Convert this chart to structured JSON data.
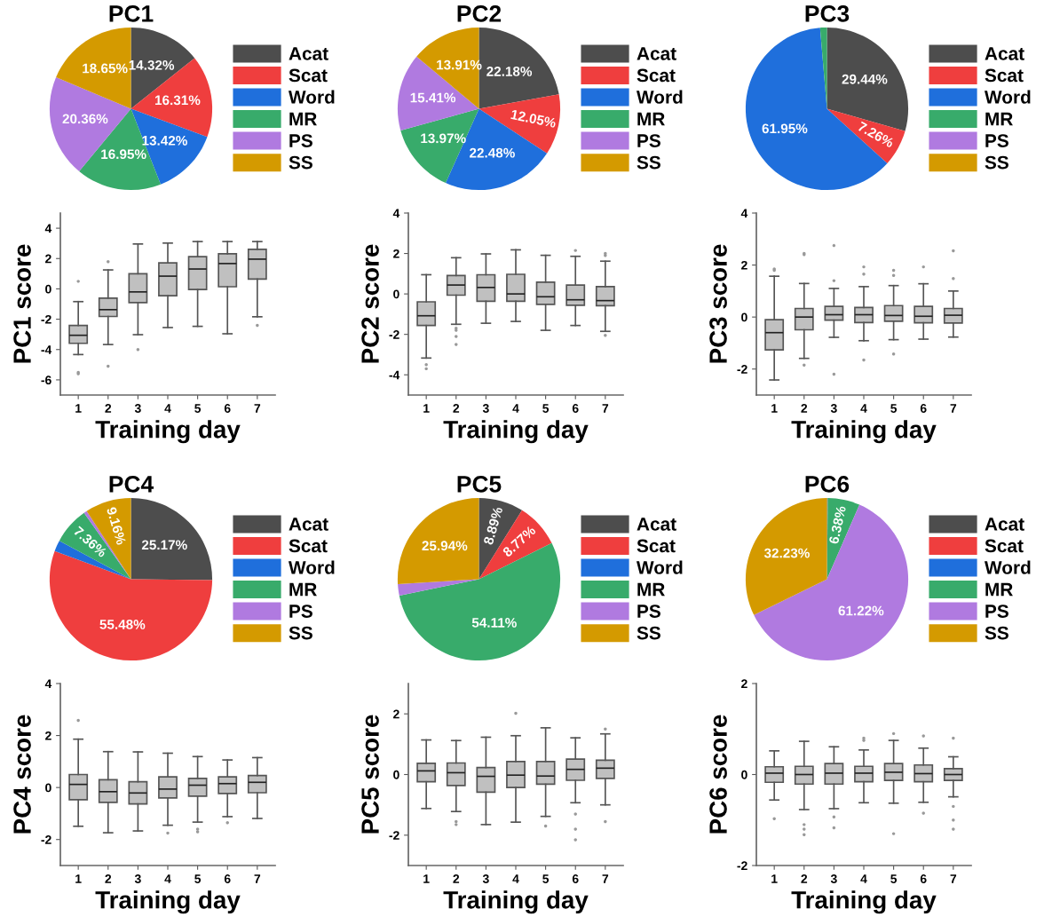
{
  "chart_data": [
    {
      "type": "pie",
      "title": "PC1",
      "legend": "right",
      "categories": [
        "Acat",
        "Scat",
        "Word",
        "MR",
        "PS",
        "SS"
      ],
      "colors": [
        "#4d4d4d",
        "#ef3e3e",
        "#1f6fdc",
        "#38ab6b",
        "#b07ae0",
        "#d49a00"
      ],
      "values": [
        14.32,
        16.31,
        13.42,
        16.95,
        20.36,
        18.65
      ],
      "value_labels": [
        "14.32%",
        "16.31%",
        "13.42%",
        "16.95%",
        "20.36%",
        "18.65%"
      ]
    },
    {
      "type": "pie",
      "title": "PC2",
      "legend": "right",
      "categories": [
        "Acat",
        "Scat",
        "Word",
        "MR",
        "PS",
        "SS"
      ],
      "colors": [
        "#4d4d4d",
        "#ef3e3e",
        "#1f6fdc",
        "#38ab6b",
        "#b07ae0",
        "#d49a00"
      ],
      "values": [
        22.18,
        12.05,
        22.48,
        13.97,
        15.41,
        13.91
      ],
      "value_labels": [
        "22.18%",
        "12.05%",
        "22.48%",
        "13.97%",
        "15.41%",
        "13.91%"
      ]
    },
    {
      "type": "pie",
      "title": "PC3",
      "legend": "right",
      "categories": [
        "Acat",
        "Scat",
        "Word",
        "MR",
        "PS",
        "SS"
      ],
      "colors": [
        "#4d4d4d",
        "#ef3e3e",
        "#1f6fdc",
        "#38ab6b",
        "#b07ae0",
        "#d49a00"
      ],
      "values": [
        29.44,
        7.26,
        61.95,
        1.35,
        0,
        0
      ],
      "value_labels": [
        "29.44%",
        "7.26%",
        "61.95%",
        null,
        null,
        null
      ]
    },
    {
      "type": "box",
      "xlabel": "Training day",
      "ylabel": "PC1 score",
      "categories": [
        "1",
        "2",
        "3",
        "4",
        "5",
        "6",
        "7"
      ],
      "ylim": [
        -7,
        5
      ],
      "yticks": [
        -6,
        -4,
        -2,
        0,
        2,
        4
      ],
      "color": "#c0c0c0",
      "boxes": [
        {
          "low": -4.33,
          "q1": -3.59,
          "median": -3.06,
          "q3": -2.41,
          "high": -0.84,
          "outliers": [
            0.5,
            -5.5,
            -5.6
          ]
        },
        {
          "low": -3.67,
          "q1": -1.82,
          "median": -1.37,
          "q3": -0.61,
          "high": 1.25,
          "outliers": [
            1.8,
            -5.1
          ]
        },
        {
          "low": -3.02,
          "q1": -0.9,
          "median": -0.2,
          "q3": 1.0,
          "high": 2.96,
          "outliers": [
            -4.0
          ]
        },
        {
          "low": -2.55,
          "q1": -0.45,
          "median": 0.84,
          "q3": 1.71,
          "high": 3.02
        },
        {
          "low": -2.47,
          "q1": -0.04,
          "median": 1.31,
          "q3": 2.12,
          "high": 3.12
        },
        {
          "low": -2.96,
          "q1": 0.14,
          "median": 1.67,
          "q3": 2.31,
          "high": 3.12
        },
        {
          "low": -1.84,
          "q1": 0.65,
          "median": 1.96,
          "q3": 2.61,
          "high": 3.12,
          "outliers": [
            -2.4
          ]
        }
      ]
    },
    {
      "type": "box",
      "xlabel": "Training day",
      "ylabel": "PC2 score",
      "categories": [
        "1",
        "2",
        "3",
        "4",
        "5",
        "6",
        "7"
      ],
      "ylim": [
        -5,
        4
      ],
      "yticks": [
        -4,
        -2,
        0,
        2,
        4
      ],
      "color": "#c0c0c0",
      "boxes": [
        {
          "low": -3.17,
          "q1": -1.56,
          "median": -1.08,
          "q3": -0.39,
          "high": 0.95,
          "outliers": [
            -3.5,
            -3.7
          ]
        },
        {
          "low": -1.5,
          "q1": -0.06,
          "median": 0.44,
          "q3": 0.91,
          "high": 1.79,
          "outliers": [
            -1.7,
            -1.8,
            -2.1,
            -2.5
          ]
        },
        {
          "low": -1.45,
          "q1": -0.36,
          "median": 0.32,
          "q3": 0.95,
          "high": 1.98
        },
        {
          "low": -1.36,
          "q1": -0.36,
          "median": 0,
          "q3": 0.97,
          "high": 2.18
        },
        {
          "low": -1.8,
          "q1": -0.52,
          "median": -0.14,
          "q3": 0.58,
          "high": 1.91
        },
        {
          "low": -1.56,
          "q1": -0.56,
          "median": -0.29,
          "q3": 0.44,
          "high": 1.86,
          "outliers": [
            2.15
          ]
        },
        {
          "low": -1.85,
          "q1": -0.58,
          "median": -0.33,
          "q3": 0.36,
          "high": 1.62,
          "outliers": [
            2.0,
            1.9,
            -2.05
          ]
        }
      ]
    },
    {
      "type": "box",
      "xlabel": "Training day",
      "ylabel": "PC3 score",
      "categories": [
        "1",
        "2",
        "3",
        "4",
        "5",
        "6",
        "7"
      ],
      "ylim": [
        -3,
        4
      ],
      "yticks": [
        -2,
        0,
        2,
        4
      ],
      "color": "#c0c0c0",
      "boxes": [
        {
          "low": -2.42,
          "q1": -1.26,
          "median": -0.6,
          "q3": -0.1,
          "high": 1.57,
          "outliers": [
            1.8,
            1.85
          ]
        },
        {
          "low": -1.59,
          "q1": -0.49,
          "median": 0,
          "q3": 0.33,
          "high": 1.29,
          "outliers": [
            2.4,
            2.45,
            -1.85
          ]
        },
        {
          "low": -0.78,
          "q1": -0.12,
          "median": 0.09,
          "q3": 0.41,
          "high": 1.1,
          "outliers": [
            2.75,
            1.4,
            -2.2
          ]
        },
        {
          "low": -0.91,
          "q1": -0.21,
          "median": 0.09,
          "q3": 0.37,
          "high": 1.17,
          "outliers": [
            1.93,
            1.65,
            -1.65
          ]
        },
        {
          "low": -0.87,
          "q1": -0.16,
          "median": 0.06,
          "q3": 0.44,
          "high": 1.21,
          "outliers": [
            1.8,
            1.6,
            -1.42
          ]
        },
        {
          "low": -0.85,
          "q1": -0.22,
          "median": 0.03,
          "q3": 0.41,
          "high": 1.28,
          "outliers": [
            1.93
          ]
        },
        {
          "low": -0.77,
          "q1": -0.23,
          "median": 0.07,
          "q3": 0.33,
          "high": 1.0,
          "outliers": [
            2.55,
            1.48
          ]
        }
      ]
    },
    {
      "type": "pie",
      "title": "PC4",
      "legend": "right",
      "categories": [
        "Acat",
        "Scat",
        "Word",
        "MR",
        "PS",
        "SS"
      ],
      "colors": [
        "#4d4d4d",
        "#ef3e3e",
        "#1f6fdc",
        "#38ab6b",
        "#b07ae0",
        "#d49a00"
      ],
      "values": [
        25.17,
        55.48,
        2.2,
        7.36,
        0.63,
        9.16
      ],
      "value_labels": [
        "25.17%",
        "55.48%",
        null,
        "7.36%",
        null,
        "9.16%"
      ]
    },
    {
      "type": "pie",
      "title": "PC5",
      "legend": "right",
      "categories": [
        "Acat",
        "Scat",
        "Word",
        "MR",
        "PS",
        "SS"
      ],
      "colors": [
        "#4d4d4d",
        "#ef3e3e",
        "#1f6fdc",
        "#38ab6b",
        "#b07ae0",
        "#d49a00"
      ],
      "values": [
        8.89,
        8.77,
        0,
        54.11,
        2.29,
        25.94
      ],
      "value_labels": [
        "8.89%",
        "8.77%",
        null,
        "54.11%",
        null,
        "25.94%"
      ]
    },
    {
      "type": "pie",
      "title": "PC6",
      "legend": "right",
      "categories": [
        "Acat",
        "Scat",
        "Word",
        "MR",
        "PS",
        "SS"
      ],
      "colors": [
        "#4d4d4d",
        "#ef3e3e",
        "#1f6fdc",
        "#38ab6b",
        "#b07ae0",
        "#d49a00"
      ],
      "values": [
        0.17,
        0,
        0,
        6.38,
        61.22,
        32.23
      ],
      "value_labels": [
        null,
        null,
        null,
        "6.38%",
        "61.22%",
        "32.23%"
      ]
    },
    {
      "type": "box",
      "xlabel": "Training day",
      "ylabel": "PC4 score",
      "categories": [
        "1",
        "2",
        "3",
        "4",
        "5",
        "6",
        "7"
      ],
      "ylim": [
        -3,
        4
      ],
      "yticks": [
        -2,
        0,
        2,
        4
      ],
      "color": "#c0c0c0",
      "boxes": [
        {
          "low": -1.49,
          "q1": -0.47,
          "median": 0.12,
          "q3": 0.5,
          "high": 1.86,
          "outliers": [
            2.58
          ]
        },
        {
          "low": -1.74,
          "q1": -0.57,
          "median": -0.16,
          "q3": 0.3,
          "high": 1.38
        },
        {
          "low": -1.67,
          "q1": -0.63,
          "median": -0.21,
          "q3": 0.22,
          "high": 1.37
        },
        {
          "low": -1.45,
          "q1": -0.4,
          "median": -0.06,
          "q3": 0.41,
          "high": 1.32,
          "outliers": [
            -1.75
          ]
        },
        {
          "low": -1.33,
          "q1": -0.33,
          "median": 0.09,
          "q3": 0.35,
          "high": 1.19,
          "outliers": [
            -1.6,
            -1.7
          ]
        },
        {
          "low": -1.12,
          "q1": -0.23,
          "median": 0.15,
          "q3": 0.41,
          "high": 1.06,
          "outliers": [
            -1.35
          ]
        },
        {
          "low": -1.19,
          "q1": -0.2,
          "median": 0.2,
          "q3": 0.46,
          "high": 1.15
        }
      ]
    },
    {
      "type": "box",
      "xlabel": "Training day",
      "ylabel": "PC5 score",
      "categories": [
        "1",
        "2",
        "3",
        "4",
        "5",
        "6",
        "7"
      ],
      "ylim": [
        -3,
        3
      ],
      "yticks": [
        -2,
        0,
        2
      ],
      "color": "#c0c0c0",
      "boxes": [
        {
          "low": -1.12,
          "q1": -0.24,
          "median": 0.12,
          "q3": 0.37,
          "high": 1.14
        },
        {
          "low": -1.22,
          "q1": -0.36,
          "median": 0.06,
          "q3": 0.38,
          "high": 1.12,
          "outliers": [
            -1.55,
            -1.65
          ]
        },
        {
          "low": -1.65,
          "q1": -0.58,
          "median": -0.06,
          "q3": 0.23,
          "high": 1.23
        },
        {
          "low": -1.57,
          "q1": -0.43,
          "median": -0.02,
          "q3": 0.43,
          "high": 1.28,
          "outliers": [
            2.02
          ]
        },
        {
          "low": -1.38,
          "q1": -0.32,
          "median": -0.05,
          "q3": 0.43,
          "high": 1.54,
          "outliers": [
            -1.7
          ]
        },
        {
          "low": -0.93,
          "q1": -0.19,
          "median": 0.17,
          "q3": 0.51,
          "high": 1.21,
          "outliers": [
            -1.3,
            -1.8,
            -2.15
          ]
        },
        {
          "low": -1.0,
          "q1": -0.13,
          "median": 0.21,
          "q3": 0.47,
          "high": 1.34,
          "outliers": [
            1.5,
            -1.55
          ]
        }
      ]
    },
    {
      "type": "box",
      "xlabel": "Training day",
      "ylabel": "PC6 score",
      "categories": [
        "1",
        "2",
        "3",
        "4",
        "5",
        "6",
        "7"
      ],
      "ylim": [
        -2,
        2
      ],
      "yticks": [
        -2,
        0,
        2
      ],
      "color": "#c0c0c0",
      "boxes": [
        {
          "low": -0.56,
          "q1": -0.17,
          "median": 0.03,
          "q3": 0.17,
          "high": 0.52,
          "outliers": [
            -0.97
          ]
        },
        {
          "low": -0.77,
          "q1": -0.21,
          "median": 0,
          "q3": 0.18,
          "high": 0.73,
          "outliers": [
            -1.1,
            -1.2,
            -1.32
          ]
        },
        {
          "low": -0.75,
          "q1": -0.21,
          "median": 0.03,
          "q3": 0.24,
          "high": 0.61,
          "outliers": [
            -0.93,
            -1.17
          ]
        },
        {
          "low": -0.62,
          "q1": -0.16,
          "median": 0.03,
          "q3": 0.18,
          "high": 0.54,
          "outliers": [
            0.8,
            0.75
          ]
        },
        {
          "low": -0.63,
          "q1": -0.13,
          "median": 0.05,
          "q3": 0.24,
          "high": 0.75,
          "outliers": [
            0.9,
            -1.3
          ]
        },
        {
          "low": -0.61,
          "q1": -0.16,
          "median": 0.02,
          "q3": 0.21,
          "high": 0.58,
          "outliers": [
            0.85,
            -0.85
          ]
        },
        {
          "low": -0.49,
          "q1": -0.13,
          "median": 0,
          "q3": 0.13,
          "high": 0.39,
          "outliers": [
            0.8,
            -0.7,
            -1.0,
            -1.2
          ]
        }
      ]
    }
  ]
}
